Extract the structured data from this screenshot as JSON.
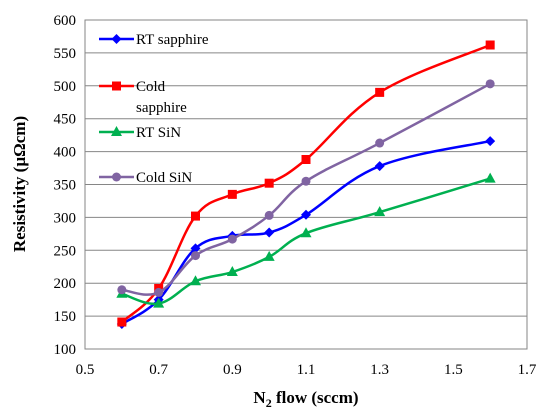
{
  "chart_data": {
    "type": "line",
    "title": "",
    "xlabel": "N",
    "xlabel_sub": "2",
    "xlabel_rest": " flow (sccm)",
    "ylabel": "Resistivity (µΩcm)",
    "xlim": [
      0.5,
      1.7
    ],
    "ylim": [
      100,
      600
    ],
    "xticks": [
      "0.5",
      "0.7",
      "0.9",
      "1.1",
      "1.3",
      "1.5",
      "1.7"
    ],
    "yticks": [
      "100",
      "150",
      "200",
      "250",
      "300",
      "350",
      "400",
      "450",
      "500",
      "550",
      "600"
    ],
    "grid": "horizontal",
    "legend_position": "top-left",
    "x": [
      0.6,
      0.7,
      0.8,
      0.9,
      1.0,
      1.1,
      1.3,
      1.6
    ],
    "series": [
      {
        "name": "RT sapphire",
        "legend_lines": [
          "RT sapphire"
        ],
        "color": "#0000ff",
        "marker": "diamond",
        "values": [
          138,
          175,
          253,
          272,
          277,
          304,
          378,
          416
        ]
      },
      {
        "name": "Cold sapphire",
        "legend_lines": [
          "Cold",
          "sapphire"
        ],
        "color": "#ff0000",
        "marker": "square",
        "values": [
          141,
          192,
          302,
          335,
          352,
          388,
          490,
          562
        ]
      },
      {
        "name": "RT SiN",
        "legend_lines": [
          "RT SiN"
        ],
        "color": "#00b050",
        "marker": "triangle",
        "values": [
          184,
          169,
          203,
          217,
          240,
          276,
          308,
          359
        ]
      },
      {
        "name": "Cold SiN",
        "legend_lines": [
          "Cold SiN"
        ],
        "color": "#8064a2",
        "marker": "circle",
        "values": [
          190,
          186,
          242,
          267,
          303,
          355,
          413,
          503
        ]
      }
    ]
  }
}
